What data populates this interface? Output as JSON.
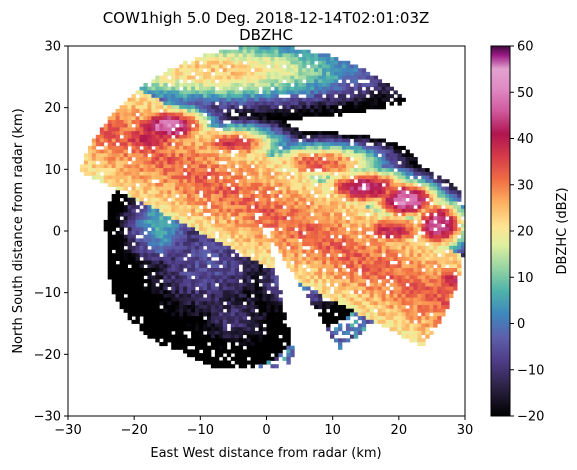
{
  "chart_data": {
    "type": "heatmap",
    "title": "COW1high 5.0 Deg. 2018-12-14T02:01:03Z",
    "subtitle": "DBZHC",
    "xlabel": "East West distance from radar (km)",
    "ylabel": "North South distance from radar (km)",
    "xlim": [
      -30,
      30
    ],
    "ylim": [
      -30,
      30
    ],
    "xticks": [
      "−30",
      "−20",
      "−10",
      "0",
      "10",
      "20",
      "30"
    ],
    "yticks": [
      "−30",
      "−20",
      "−10",
      "0",
      "10",
      "20",
      "30"
    ],
    "xtick_values": [
      -30,
      -20,
      -10,
      0,
      10,
      20,
      30
    ],
    "ytick_values": [
      -30,
      -20,
      -10,
      0,
      10,
      20,
      30
    ],
    "colorbar": {
      "label": "DBZHC (dBZ)",
      "range": [
        -20,
        60
      ],
      "ticks": [
        "−20",
        "−10",
        "0",
        "10",
        "20",
        "30",
        "40",
        "50",
        "60"
      ],
      "tick_values": [
        -20,
        -10,
        0,
        10,
        20,
        30,
        40,
        50,
        60
      ],
      "colormap": [
        {
          "v": -20,
          "color": "#000000"
        },
        {
          "v": -14,
          "color": "#2a2141"
        },
        {
          "v": -8,
          "color": "#4f3d88"
        },
        {
          "v": -3,
          "color": "#5d5fab"
        },
        {
          "v": 2,
          "color": "#3f87be"
        },
        {
          "v": 7,
          "color": "#4fb3aa"
        },
        {
          "v": 12,
          "color": "#96d4a3"
        },
        {
          "v": 17,
          "color": "#dff0a0"
        },
        {
          "v": 21,
          "color": "#fde491"
        },
        {
          "v": 26,
          "color": "#fdb262"
        },
        {
          "v": 31,
          "color": "#f06e44"
        },
        {
          "v": 36,
          "color": "#d63c4a"
        },
        {
          "v": 41,
          "color": "#b0154f"
        },
        {
          "v": 46,
          "color": "#d05a9e"
        },
        {
          "v": 51,
          "color": "#e08cc4"
        },
        {
          "v": 55,
          "color": "#e3a2cf"
        },
        {
          "v": 58,
          "color": "#9c1a84"
        },
        {
          "v": 60,
          "color": "#3f0a3f"
        }
      ]
    },
    "grid": false,
    "features": [
      {
        "x": -8,
        "y": 26,
        "dbz": 24,
        "sx": 22,
        "sy": 5
      },
      {
        "x": -25,
        "y": 20,
        "dbz": 30,
        "sx": 5,
        "sy": 6
      },
      {
        "x": -18,
        "y": 15,
        "dbz": 38,
        "sx": 9,
        "sy": 4
      },
      {
        "x": -15,
        "y": 17,
        "dbz": 50,
        "sx": 6,
        "sy": 3
      },
      {
        "x": -5,
        "y": 14,
        "dbz": 36,
        "sx": 7,
        "sy": 3
      },
      {
        "x": 8,
        "y": 11,
        "dbz": 34,
        "sx": 9,
        "sy": 3
      },
      {
        "x": 15,
        "y": 7,
        "dbz": 45,
        "sx": 7,
        "sy": 3
      },
      {
        "x": 21,
        "y": 5,
        "dbz": 52,
        "sx": 5,
        "sy": 3
      },
      {
        "x": 26,
        "y": 1,
        "dbz": 48,
        "sx": 4,
        "sy": 4
      },
      {
        "x": 12,
        "y": 0,
        "dbz": 28,
        "sx": 5,
        "sy": 3
      },
      {
        "x": 6,
        "y": 2,
        "dbz": 22,
        "sx": 5,
        "sy": 4
      },
      {
        "x": 19,
        "y": 0,
        "dbz": 40,
        "sx": 6,
        "sy": 3
      },
      {
        "x": 28,
        "y": -8,
        "dbz": 40,
        "sx": 3,
        "sy": 3
      },
      {
        "x": -9,
        "y": -5,
        "dbz": -5,
        "sx": 9,
        "sy": 9
      },
      {
        "x": -5,
        "y": -14,
        "dbz": -10,
        "sx": 6,
        "sy": 5
      },
      {
        "x": -16,
        "y": 1,
        "dbz": 6,
        "sx": 5,
        "sy": 6
      },
      {
        "x": 5,
        "y": -8,
        "dbz": 0,
        "sx": 6,
        "sy": 5
      },
      {
        "x": 28,
        "y": 24,
        "dbz": 10,
        "sx": 4,
        "sy": 4
      }
    ]
  }
}
